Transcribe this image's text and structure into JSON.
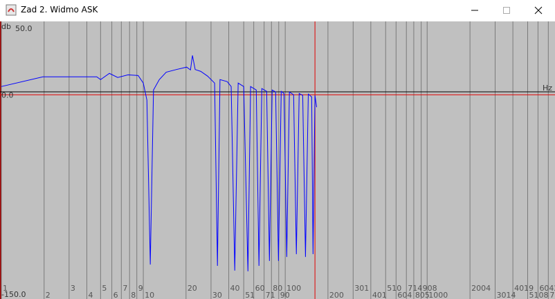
{
  "window": {
    "title": "Zad 2. Widmo ASK"
  },
  "chart_data": {
    "type": "line",
    "y_label": "db",
    "x_label": "Hz",
    "xscale": "log",
    "grid": true,
    "xlim": [
      1,
      8050
    ],
    "ylim": [
      -150,
      50
    ],
    "xticks": [
      1,
      2,
      3,
      4,
      5,
      6,
      7,
      8,
      9,
      10,
      20,
      30,
      40,
      51,
      60,
      71,
      80,
      90,
      100,
      200,
      301,
      401,
      510,
      604,
      714,
      805,
      908,
      1000,
      2004,
      3014,
      4019,
      5108,
      6042,
      7140,
      8050
    ],
    "yticks": [
      {
        "value": 50,
        "label": "50.0"
      },
      {
        "value": 0,
        "label": "0.0"
      },
      {
        "value": -150,
        "label": "-150.0"
      }
    ],
    "marker_x": 162,
    "series": [
      {
        "color": "#0000ff",
        "x": [
          1,
          1.96,
          4.7,
          5.0,
          5.77,
          6.6,
          7.8,
          9.2,
          10,
          10.6,
          11.2,
          11.8,
          12.96,
          14.5,
          17.1,
          20.2,
          21.5,
          22.2,
          23.2,
          25.4,
          28.4,
          31.8,
          33.3,
          34.7,
          39,
          41.6,
          44.1,
          46.6,
          51,
          54.6,
          57,
          62.5,
          65.3,
          68.4,
          74,
          77.4,
          80.9,
          85.6,
          89.6,
          93.7,
          98,
          102.5,
          107,
          114.6,
          119.8,
          125.4,
          132.8,
          138.9,
          145.4,
          153.6,
          157,
          162,
          166.5
        ],
        "values": [
          6.2,
          13.5,
          13.5,
          11.4,
          16.1,
          13,
          15,
          14.5,
          8.8,
          -4,
          -127.7,
          3.6,
          11.4,
          17,
          19,
          20.8,
          18.7,
          29.6,
          19,
          17.6,
          14,
          8.8,
          -128.7,
          11.4,
          9.9,
          6.2,
          -132.3,
          8.8,
          6.2,
          -132.8,
          6.2,
          3.6,
          -128.7,
          4.7,
          2.6,
          -125,
          3.6,
          2.1,
          -125,
          2.6,
          1,
          -122,
          2.1,
          0,
          -119.9,
          1,
          -0.5,
          -122,
          0.5,
          -1.6,
          -119.9,
          -0.5,
          -9.3
        ]
      }
    ]
  }
}
